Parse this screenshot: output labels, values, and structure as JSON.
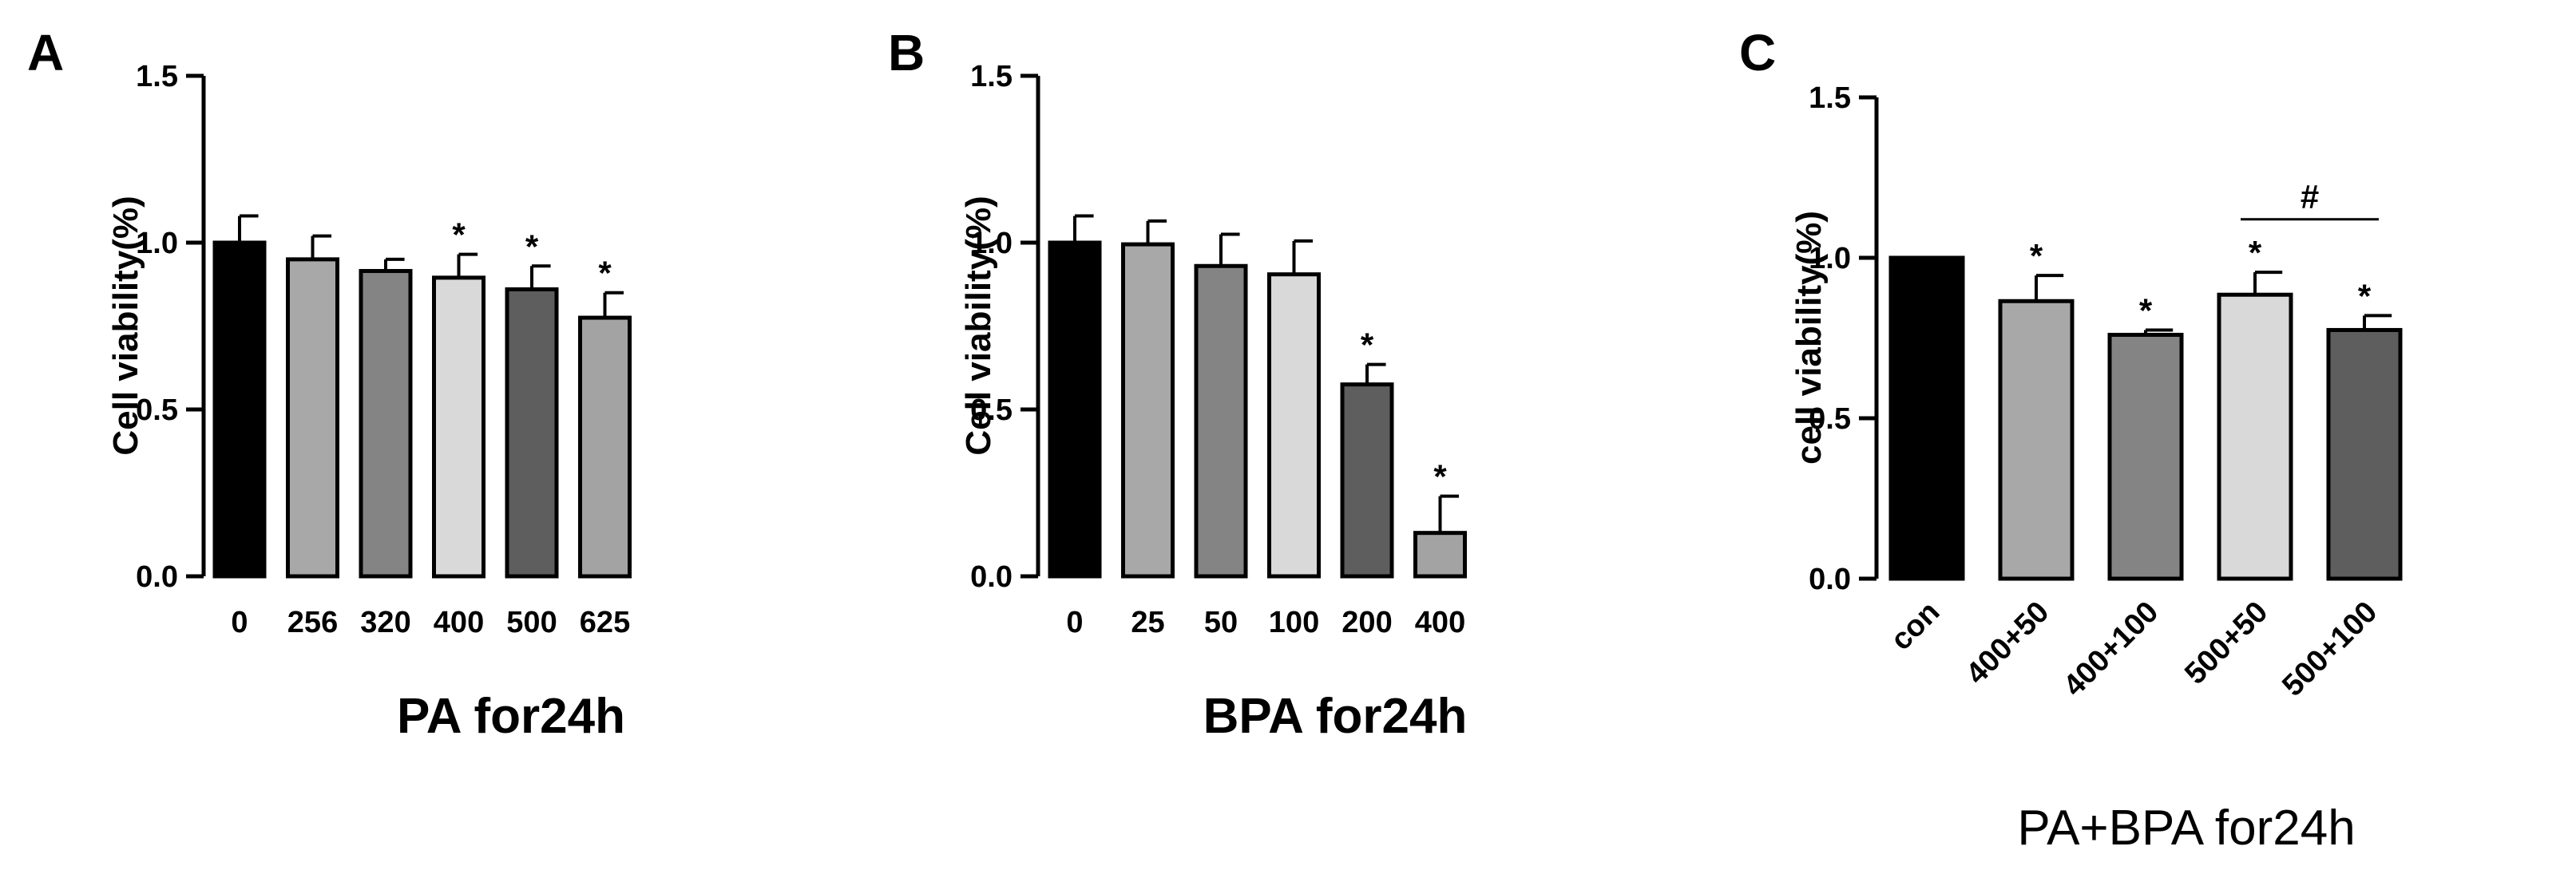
{
  "chart_data": [
    {
      "panel": "A",
      "type": "bar",
      "categories": [
        "0",
        "256",
        "320",
        "400",
        "500",
        "625"
      ],
      "values": [
        1.0,
        0.95,
        0.915,
        0.895,
        0.86,
        0.775
      ],
      "errors": [
        0.08,
        0.07,
        0.035,
        0.07,
        0.07,
        0.075
      ],
      "colors": [
        "#000000",
        "#a8a8a8",
        "#848484",
        "#d9d9d9",
        "#5e5e5e",
        "#a3a3a3"
      ],
      "annotations": [
        "",
        "",
        "",
        "*",
        "*",
        "*"
      ],
      "xlabel": "PA for24h",
      "ylabel": "Cell viability(%)",
      "ylim": [
        0,
        1.5
      ],
      "yticks": [
        "0.0",
        "0.5",
        "1.0",
        "1.5"
      ]
    },
    {
      "panel": "B",
      "type": "bar",
      "categories": [
        "0",
        "25",
        "50",
        "100",
        "200",
        "400"
      ],
      "values": [
        1.0,
        0.995,
        0.93,
        0.905,
        0.575,
        0.13
      ],
      "errors": [
        0.08,
        0.07,
        0.095,
        0.1,
        0.06,
        0.11
      ],
      "colors": [
        "#000000",
        "#a8a8a8",
        "#848484",
        "#d9d9d9",
        "#5e5e5e",
        "#a3a3a3"
      ],
      "annotations": [
        "",
        "",
        "",
        "",
        "*",
        "*"
      ],
      "xlabel": "BPA for24h",
      "ylabel": "Cell viability(%)",
      "ylim": [
        0,
        1.5
      ],
      "yticks": [
        "0.0",
        "0.5",
        "1.0",
        "1.5"
      ]
    },
    {
      "panel": "C",
      "type": "bar",
      "categories": [
        "con",
        "400+50",
        "400+100",
        "500+50",
        "500+100"
      ],
      "values": [
        1.0,
        0.865,
        0.76,
        0.885,
        0.775
      ],
      "errors": [
        0.0,
        0.08,
        0.015,
        0.07,
        0.045
      ],
      "colors": [
        "#000000",
        "#a8a8a8",
        "#848484",
        "#d9d9d9",
        "#5e5e5e"
      ],
      "annotations": [
        "",
        "*",
        "*",
        "*",
        "*"
      ],
      "bracket": {
        "from": 3,
        "to": 4,
        "label": "#"
      },
      "xlabel": "PA+BPA for24h",
      "ylabel": "cell viability(%)",
      "ylim": [
        0,
        1.5
      ],
      "yticks": [
        "0.0",
        "0.5",
        "1.0",
        "1.5"
      ]
    }
  ]
}
